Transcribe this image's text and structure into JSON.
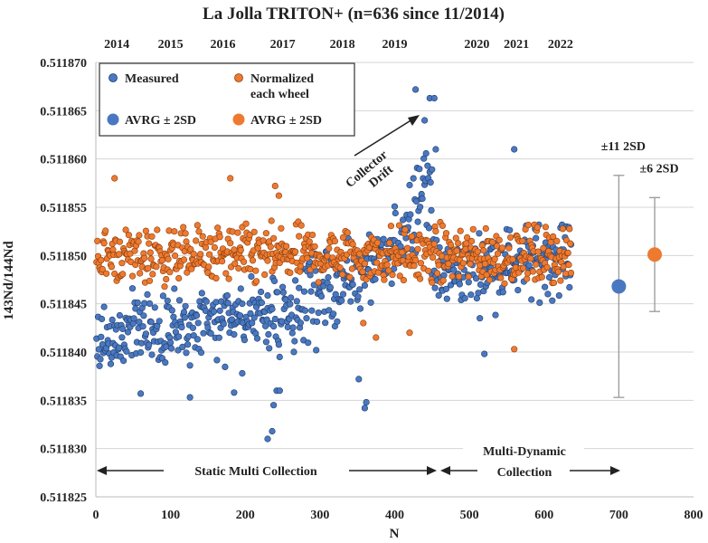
{
  "chart_data": {
    "type": "scatter",
    "title": "La Jolla TRITON+ (n=636 since 11/2014)",
    "xlabel": "N",
    "ylabel": "143Nd/144Nd",
    "xlim": [
      0,
      800
    ],
    "ylim": [
      0.511825,
      0.51187
    ],
    "x_ticks": [
      "0",
      "100",
      "200",
      "300",
      "400",
      "500",
      "600",
      "700",
      "800"
    ],
    "y_ticks": [
      "0.511825",
      "0.511830",
      "0.511835",
      "0.511840",
      "0.511845",
      "0.511850",
      "0.511855",
      "0.511860",
      "0.511865",
      "0.511870"
    ],
    "grid": "horizontal",
    "legend_placement": "top-left",
    "years": [
      {
        "label": "2014",
        "n": 28
      },
      {
        "label": "2015",
        "n": 100
      },
      {
        "label": "2016",
        "n": 170
      },
      {
        "label": "2017",
        "n": 250
      },
      {
        "label": "2018",
        "n": 330
      },
      {
        "label": "2019",
        "n": 400
      },
      {
        "label": "2020",
        "n": 510
      },
      {
        "label": "2021",
        "n": 563
      },
      {
        "label": "2022",
        "n": 622
      }
    ],
    "series": [
      {
        "name": "Measured",
        "color": "#4a78c0",
        "segments": [
          {
            "n_start": 1,
            "n_end": 230,
            "y_start": 0.511841,
            "y_end": 0.511844,
            "spread": 3.5e-06
          },
          {
            "n_start": 230,
            "n_end": 300,
            "y_start": 0.511843,
            "y_end": 0.511846,
            "spread": 5e-06
          },
          {
            "n_start": 300,
            "n_end": 400,
            "y_start": 0.511846,
            "y_end": 0.51185,
            "spread": 3.5e-06
          },
          {
            "n_start": 400,
            "n_end": 450,
            "y_start": 0.511851,
            "y_end": 0.511859,
            "spread": 4.5e-06
          },
          {
            "n_start": 450,
            "n_end": 636,
            "y_start": 0.511848,
            "y_end": 0.51185,
            "spread": 3.5e-06
          }
        ],
        "points": [
          [
            60,
            0.5118357
          ],
          [
            126,
            0.5118353
          ],
          [
            185,
            0.5118358
          ],
          [
            196,
            0.5118378
          ],
          [
            230,
            0.511831
          ],
          [
            236,
            0.5118318
          ],
          [
            238,
            0.5118345
          ],
          [
            242,
            0.511836
          ],
          [
            246,
            0.511836
          ],
          [
            360,
            0.5118342
          ],
          [
            362,
            0.5118348
          ],
          [
            352,
            0.5118372
          ],
          [
            428,
            0.5118672
          ],
          [
            440,
            0.511864
          ],
          [
            447,
            0.5118663
          ],
          [
            453,
            0.5118663
          ],
          [
            455,
            0.511861
          ],
          [
            520,
            0.5118398
          ],
          [
            560,
            0.511861
          ]
        ]
      },
      {
        "name": "Normalized each wheel",
        "color": "#ee7a30",
        "segments": [
          {
            "n_start": 1,
            "n_end": 636,
            "y_start": 0.51185,
            "y_end": 0.51185,
            "spread": 2.8e-06
          }
        ],
        "points": [
          [
            25,
            0.511858
          ],
          [
            180,
            0.511858
          ],
          [
            240,
            0.5118572
          ],
          [
            245,
            0.5118562
          ],
          [
            358,
            0.511843
          ],
          [
            560,
            0.5118403
          ],
          [
            375,
            0.5118415
          ],
          [
            420,
            0.511842
          ]
        ]
      }
    ],
    "summary": [
      {
        "name": "AVRG ± 2SD",
        "color": "#4a78c0",
        "x": 700,
        "mean": 0.5118468,
        "sd2": 1.15e-05,
        "label": "±11 2SD"
      },
      {
        "name": "AVRG ± 2SD",
        "color": "#ee7a30",
        "x": 748,
        "mean": 0.5118501,
        "sd2": 5.9e-06,
        "label": "±6 2SD"
      }
    ],
    "legend": {
      "measured": "Measured",
      "normalized_line1": "Normalized",
      "normalized_line2": "each wheel",
      "avg_blue": "AVRG ± 2SD",
      "avg_orange": "AVRG ± 2SD"
    },
    "annotations": {
      "drift_line1": "Collector",
      "drift_line2": "Drift",
      "static": "Static Multi Collection",
      "dynamic_line1": "Multi-Dynamic",
      "dynamic_line2": "Collection"
    }
  }
}
